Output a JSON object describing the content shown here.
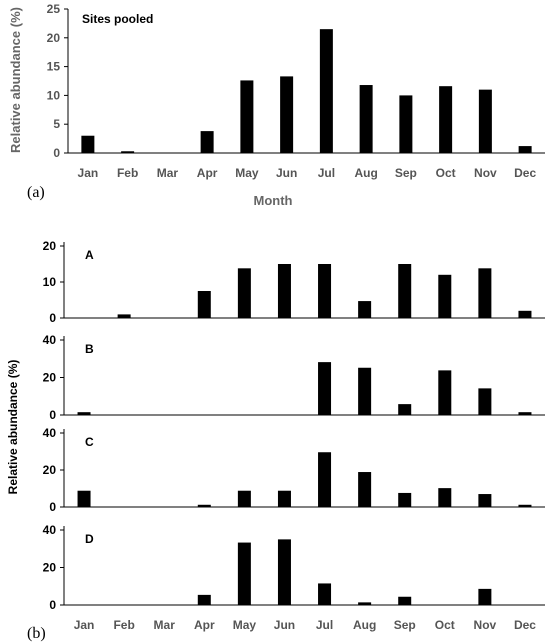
{
  "colors": {
    "bar": "#000000",
    "axis": "#000000",
    "label_gray": "#666666"
  },
  "panel_tag_a": "(a)",
  "panel_tag_b": "(b)",
  "chart_data": [
    {
      "type": "bar",
      "title": "Sites pooled",
      "xlabel": "Month",
      "ylabel": "Relative abundance (%)",
      "ylim": [
        0,
        25
      ],
      "yticks": [
        "0",
        "5",
        "10",
        "15",
        "20",
        "25"
      ],
      "categories": [
        "Jan",
        "Feb",
        "Mar",
        "Apr",
        "May",
        "Jun",
        "Jul",
        "Aug",
        "Sep",
        "Oct",
        "Nov",
        "Dec"
      ],
      "values": [
        3.0,
        0.3,
        0,
        3.8,
        12.6,
        13.3,
        21.5,
        11.8,
        10.0,
        11.6,
        11.0,
        1.2
      ]
    },
    {
      "type": "bar",
      "ylabel": "Relative abundance (%)",
      "categories": [
        "Jan",
        "Feb",
        "Mar",
        "Apr",
        "May",
        "Jun",
        "Jul",
        "Aug",
        "Sep",
        "Oct",
        "Nov",
        "Dec"
      ],
      "panels": [
        {
          "label": "A",
          "ylim": [
            0,
            20
          ],
          "yticks": [
            "0",
            "10",
            "20"
          ],
          "values": [
            0,
            1.0,
            0,
            7.5,
            13.8,
            15.0,
            15.0,
            4.7,
            15.0,
            12.0,
            13.8,
            2.0
          ]
        },
        {
          "label": "B",
          "ylim": [
            0,
            40
          ],
          "yticks": [
            "0",
            "20",
            "40"
          ],
          "values": [
            1.5,
            0,
            0,
            0,
            0,
            0,
            28.2,
            25.2,
            5.8,
            23.8,
            14.2,
            1.5
          ]
        },
        {
          "label": "C",
          "ylim": [
            0,
            40
          ],
          "yticks": [
            "0",
            "20",
            "40"
          ],
          "values": [
            8.8,
            0,
            0,
            1.2,
            8.8,
            8.8,
            29.6,
            18.9,
            7.6,
            10.2,
            7.0,
            1.2
          ]
        },
        {
          "label": "D",
          "ylim": [
            0,
            40
          ],
          "yticks": [
            "0",
            "20",
            "40"
          ],
          "values": [
            0,
            0,
            0,
            5.4,
            33.3,
            35.0,
            11.5,
            1.4,
            4.4,
            0,
            8.6,
            0
          ]
        }
      ]
    }
  ]
}
